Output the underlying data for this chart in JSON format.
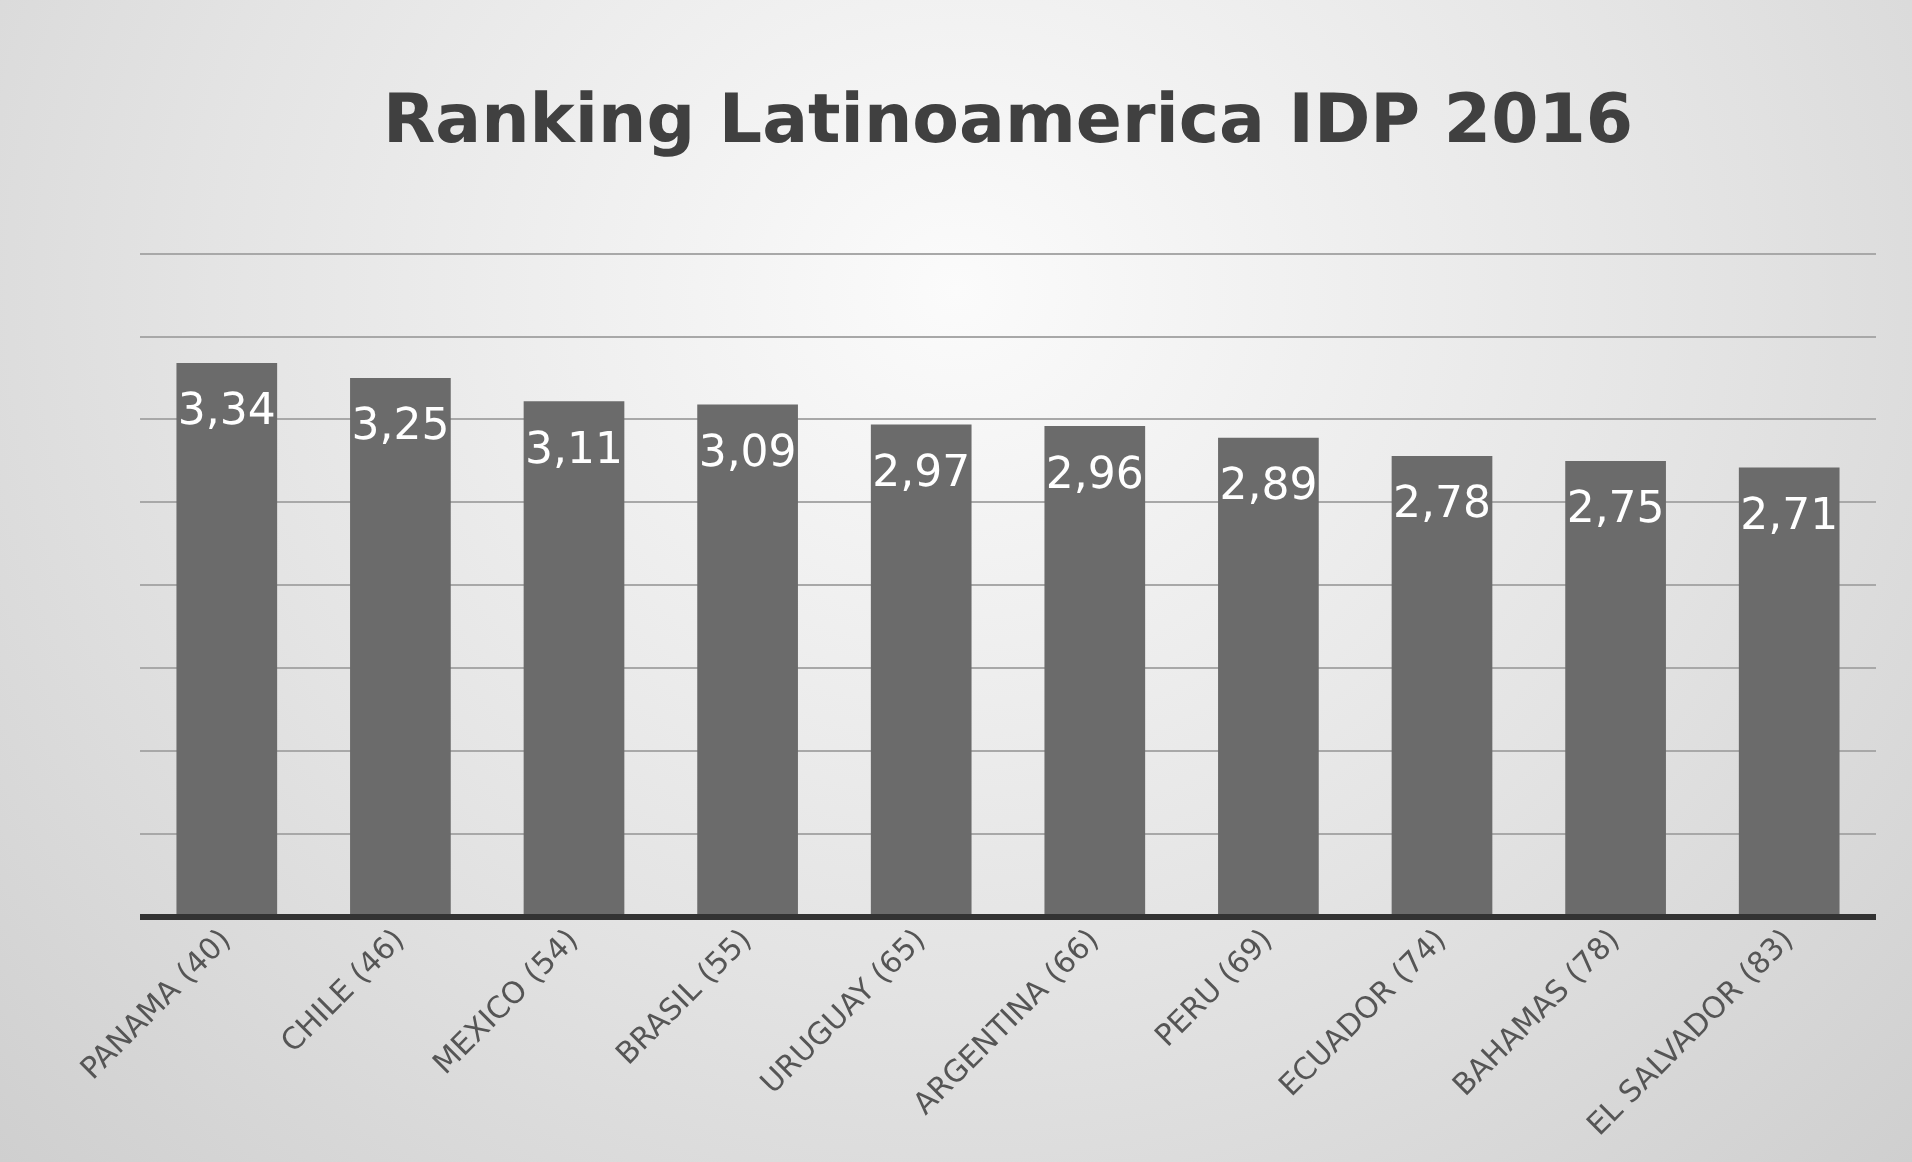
{
  "chart_data": {
    "type": "bar",
    "title": "Ranking Latinoamerica IDP 2016",
    "categories": [
      "PANAMA (40)",
      "CHILE (46)",
      "MEXICO (54)",
      "BRASIL (55)",
      "URUGUAY (65)",
      "ARGENTINA (66)",
      "PERU (69)",
      "ECUADOR (74)",
      "BAHAMAS (78)",
      "EL SALVADOR (83)"
    ],
    "values": [
      3.34,
      3.25,
      3.11,
      3.09,
      2.97,
      2.96,
      2.89,
      2.78,
      2.75,
      2.71
    ],
    "value_labels": [
      "3,34",
      "3,25",
      "3,11",
      "3,09",
      "2,97",
      "2,96",
      "2,89",
      "2,78",
      "2,75",
      "2,71"
    ],
    "color": "#6b6b6b",
    "ylim": [
      0,
      4
    ],
    "yticks": [
      {
        "value": 0,
        "label": null
      },
      {
        "value": 0.5,
        "label": null
      },
      {
        "value": 1,
        "label": null
      },
      {
        "value": 1.5,
        "label": null
      },
      {
        "value": 2,
        "label": null
      },
      {
        "value": 2.5,
        "label": null
      },
      {
        "value": 3,
        "label": null
      },
      {
        "value": 3.5,
        "label": null
      },
      {
        "value": 4,
        "label": null
      }
    ],
    "tick_labels": "x",
    "grid": "y",
    "legend": false
  }
}
